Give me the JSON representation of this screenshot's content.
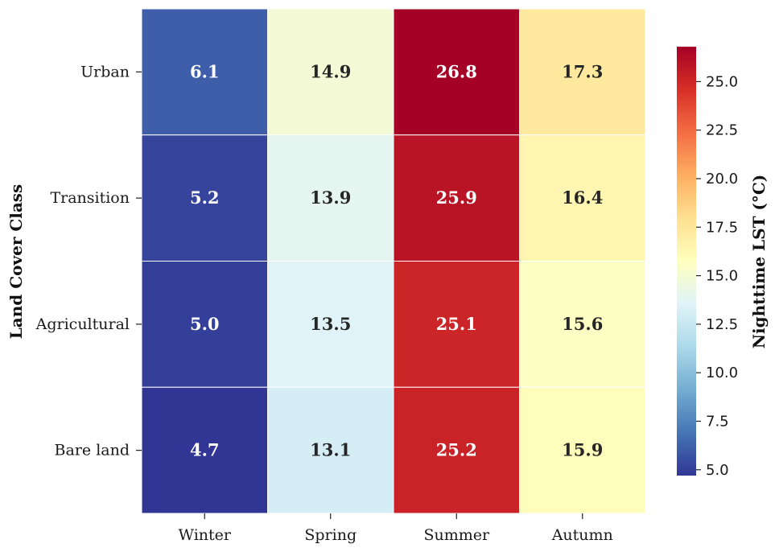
{
  "chart_data": {
    "type": "heatmap",
    "x_categories": [
      "Winter",
      "Spring",
      "Summer",
      "Autumn"
    ],
    "y_categories": [
      "Urban",
      "Transition",
      "Agricultural",
      "Bare land"
    ],
    "values": [
      [
        6.1,
        14.9,
        26.8,
        17.3
      ],
      [
        5.2,
        13.9,
        25.9,
        16.4
      ],
      [
        5.0,
        13.5,
        25.1,
        15.6
      ],
      [
        4.7,
        13.1,
        25.2,
        15.9
      ]
    ],
    "value_labels": [
      [
        "6.1",
        "14.9",
        "26.8",
        "17.3"
      ],
      [
        "5.2",
        "13.9",
        "25.9",
        "16.4"
      ],
      [
        "5.0",
        "13.5",
        "25.1",
        "15.6"
      ],
      [
        "4.7",
        "13.1",
        "25.2",
        "15.9"
      ]
    ],
    "ylabel": "Land Cover Class",
    "xlabel": "",
    "colorbar": {
      "label": "Nighttime LST (°C)",
      "range": [
        4.7,
        26.8
      ],
      "ticks": [
        5.0,
        7.5,
        10.0,
        12.5,
        15.0,
        17.5,
        20.0,
        22.5,
        25.0
      ],
      "tick_labels": [
        "5.0",
        "7.5",
        "10.0",
        "12.5",
        "15.0",
        "17.5",
        "20.0",
        "22.5",
        "25.0"
      ],
      "colormap": "RdYlBu_r"
    },
    "colors": {
      "gridline": "#ffffff",
      "text_on_light": "#262626",
      "text_on_dark": "#ffffff"
    }
  }
}
